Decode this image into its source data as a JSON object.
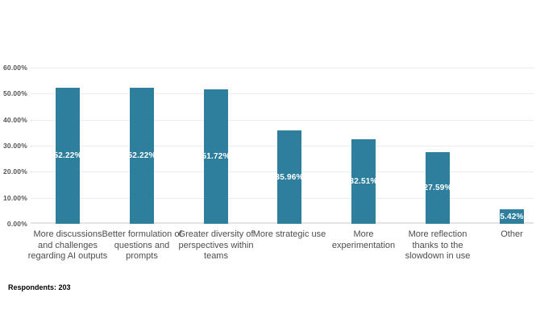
{
  "chart_data": {
    "type": "bar",
    "title": "",
    "xlabel": "",
    "ylabel": "",
    "categories": [
      "More discussions and challenges regarding AI outputs",
      "Better formulation of questions and prompts",
      "Greater diversity of perspectives within teams",
      "More strategic use",
      "More experimentation",
      "More reflection thanks to the slowdown in use",
      "Other"
    ],
    "values": [
      52.22,
      52.22,
      51.72,
      35.96,
      32.51,
      27.59,
      5.42
    ],
    "value_labels": [
      "52.22%",
      "52.22%",
      "51.72%",
      "35.96%",
      "32.51%",
      "27.59%",
      "5.42%"
    ],
    "ylim": [
      0,
      60
    ],
    "y_ticks": [
      {
        "value": 0,
        "label": "0.00%"
      },
      {
        "value": 10,
        "label": "10.00%"
      },
      {
        "value": 20,
        "label": "20.00%"
      },
      {
        "value": 30,
        "label": "30.00%"
      },
      {
        "value": 40,
        "label": "40.00%"
      },
      {
        "value": 50,
        "label": "50.00%"
      },
      {
        "value": 60,
        "label": "60.00%"
      }
    ],
    "grid": true,
    "legend_position": "none",
    "bar_color": "#2e7f9e",
    "value_label_color": "#ffffff",
    "axis_text_color": "#4d4d4d"
  },
  "footer": {
    "respondents_label": "Respondents: 203"
  }
}
